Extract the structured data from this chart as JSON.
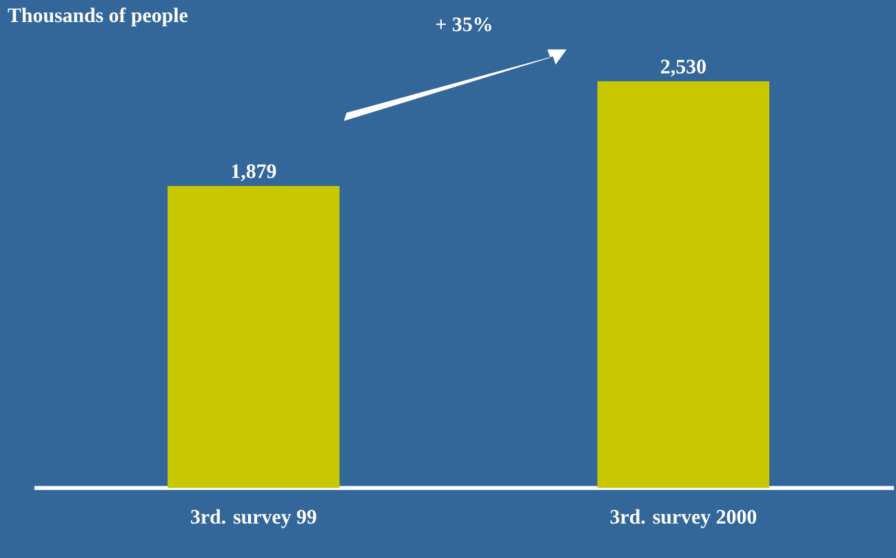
{
  "chart_data": {
    "type": "bar",
    "title": "Thousands of people",
    "categories": [
      "3rd. survey 99",
      "3rd. survey 2000"
    ],
    "values": [
      1879,
      2530
    ],
    "color": "#c8c800",
    "value_labels": [
      "1,879",
      "2,530"
    ],
    "annotations": [
      "+ 35%"
    ]
  }
}
